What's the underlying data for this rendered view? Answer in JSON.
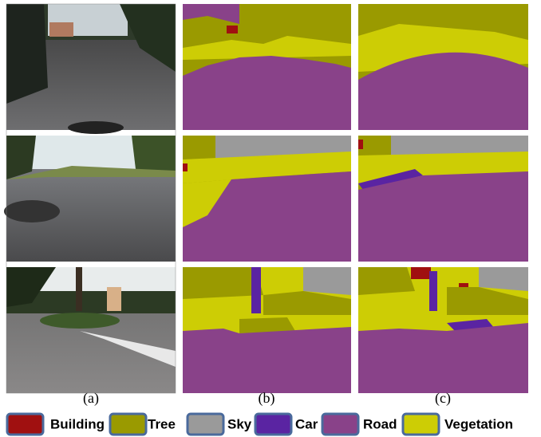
{
  "panel_labels": [
    "(a)",
    "(b)",
    "(c)"
  ],
  "legend": [
    {
      "label": "Building",
      "color": "#a01010"
    },
    {
      "label": "Tree",
      "color": "#9a9a00"
    },
    {
      "label": "Sky",
      "color": "#9a9a9a"
    },
    {
      "label": "Car",
      "color": "#5a24a2"
    },
    {
      "label": "Road",
      "color": "#894289"
    },
    {
      "label": "Vegetation",
      "color": "#cdcd05"
    }
  ]
}
